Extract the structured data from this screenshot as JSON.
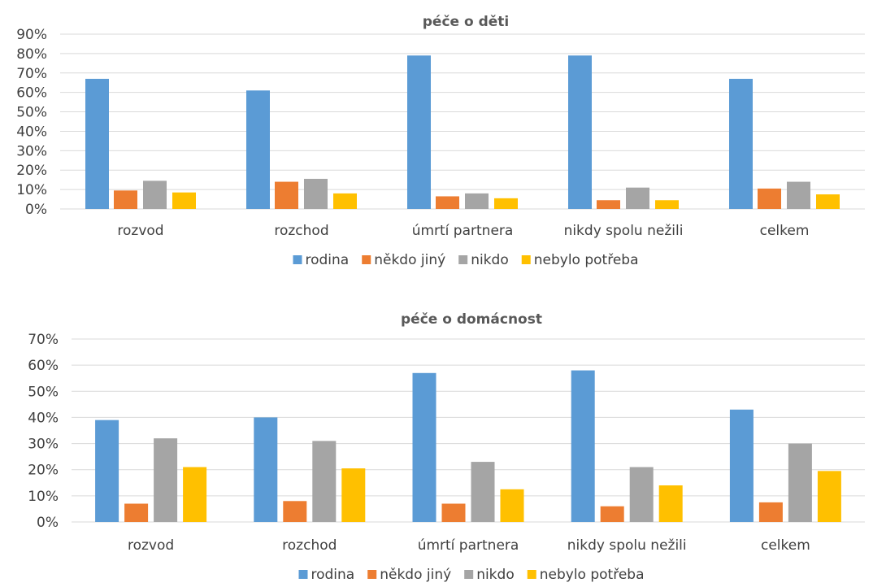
{
  "colors": {
    "rodina": "#5b9bd5",
    "nekdo_jiny": "#ed7d31",
    "nikdo": "#a5a5a5",
    "nebylo_potreba": "#ffc000"
  },
  "chart_data": [
    {
      "type": "bar",
      "title": "péče o děti",
      "categories": [
        "rozvod",
        "rozchod",
        "úmrtí partnera",
        "nikdy spolu nežili",
        "celkem"
      ],
      "y_ticks": [
        "0%",
        "10%",
        "20%",
        "30%",
        "40%",
        "50%",
        "60%",
        "70%",
        "80%",
        "90%"
      ],
      "ylim": [
        0,
        90
      ],
      "grid": true,
      "legend_position": "bottom",
      "series": [
        {
          "name": "rodina",
          "color": "#5b9bd5",
          "values": [
            67,
            61,
            79,
            79,
            67
          ]
        },
        {
          "name": "někdo jiný",
          "color": "#ed7d31",
          "values": [
            9.5,
            14,
            6.5,
            4.5,
            10.5
          ]
        },
        {
          "name": "nikdo",
          "color": "#a5a5a5",
          "values": [
            14.5,
            15.5,
            8,
            11,
            14
          ]
        },
        {
          "name": "nebylo potřeba",
          "color": "#ffc000",
          "values": [
            8.5,
            8,
            5.5,
            4.5,
            7.5
          ]
        }
      ]
    },
    {
      "type": "bar",
      "title": "péče o domácnost",
      "categories": [
        "rozvod",
        "rozchod",
        "úmrtí partnera",
        "nikdy spolu nežili",
        "celkem"
      ],
      "y_ticks": [
        "0%",
        "10%",
        "20%",
        "30%",
        "40%",
        "50%",
        "60%",
        "70%"
      ],
      "ylim": [
        0,
        70
      ],
      "grid": true,
      "legend_position": "bottom",
      "series": [
        {
          "name": "rodina",
          "color": "#5b9bd5",
          "values": [
            39,
            40,
            57,
            58,
            43
          ]
        },
        {
          "name": "někdo jiný",
          "color": "#ed7d31",
          "values": [
            7,
            8,
            7,
            6,
            7.5
          ]
        },
        {
          "name": "nikdo",
          "color": "#a5a5a5",
          "values": [
            32,
            31,
            23,
            21,
            30
          ]
        },
        {
          "name": "nebylo potřeba",
          "color": "#ffc000",
          "values": [
            21,
            20.5,
            12.5,
            14,
            19.5
          ]
        }
      ]
    }
  ]
}
